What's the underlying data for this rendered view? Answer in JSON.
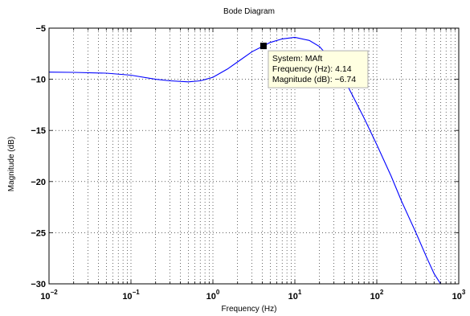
{
  "chart_data": {
    "type": "line",
    "title": "Bode Diagram",
    "xlabel": "Frequency  (Hz)",
    "ylabel": "Magnitude (dB)",
    "xscale": "log",
    "xlim": [
      0.01,
      1000
    ],
    "ylim": [
      -30,
      -5
    ],
    "grid": true,
    "x_ticks": [
      {
        "value": 0.01,
        "base": "10",
        "exp": "−2"
      },
      {
        "value": 0.1,
        "base": "10",
        "exp": "−1"
      },
      {
        "value": 1,
        "base": "10",
        "exp": "0"
      },
      {
        "value": 10,
        "base": "10",
        "exp": "1"
      },
      {
        "value": 100,
        "base": "10",
        "exp": "2"
      },
      {
        "value": 1000,
        "base": "10",
        "exp": "3"
      }
    ],
    "y_ticks": [
      {
        "value": -5,
        "label": "−5"
      },
      {
        "value": -10,
        "label": "−10"
      },
      {
        "value": -15,
        "label": "−15"
      },
      {
        "value": -20,
        "label": "−20"
      },
      {
        "value": -25,
        "label": "−25"
      },
      {
        "value": -30,
        "label": "−30"
      }
    ],
    "line_color": "#0000ff",
    "series": [
      {
        "x": [
          0.01,
          0.02,
          0.05,
          0.1,
          0.2,
          0.3,
          0.5,
          0.7,
          1,
          1.5,
          2,
          3,
          4.14,
          5,
          7,
          10,
          15,
          20,
          30,
          40,
          50,
          70,
          100,
          150,
          200,
          300,
          400,
          500,
          600
        ],
        "y": [
          -9.3,
          -9.32,
          -9.4,
          -9.6,
          -10.0,
          -10.15,
          -10.25,
          -10.15,
          -9.8,
          -9.0,
          -8.3,
          -7.3,
          -6.74,
          -6.4,
          -6.05,
          -5.9,
          -6.2,
          -6.8,
          -8.4,
          -10.0,
          -11.5,
          -13.8,
          -16.4,
          -19.5,
          -21.9,
          -25.0,
          -27.3,
          -29.0,
          -30.0
        ]
      }
    ],
    "datatip": {
      "x": 4.14,
      "y": -6.74,
      "lines": [
        "System: MAft",
        "Frequency (Hz): 4.14",
        "Magnitude (dB): −6.74"
      ],
      "background": "#ffffe1",
      "border": "#b0b0b0"
    }
  }
}
